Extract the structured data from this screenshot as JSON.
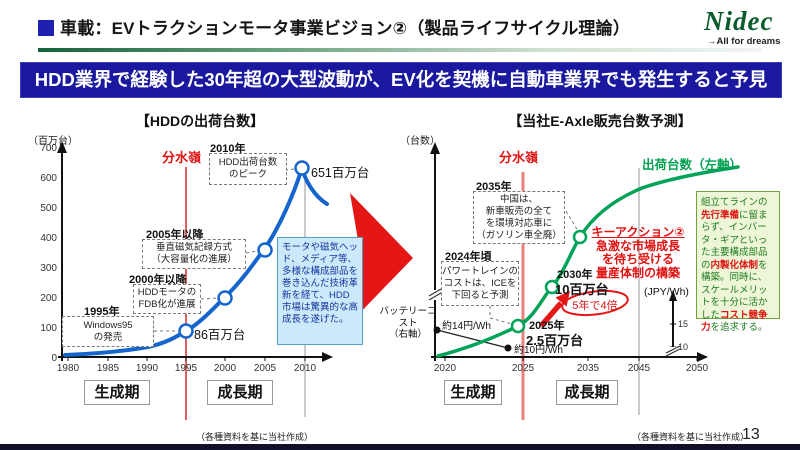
{
  "header": {
    "title": "車載：EVトラクションモータ事業ビジョン②（製品ライフサイクル理論）",
    "logo_text": "Nidec",
    "logo_tagline": "→All for dreams"
  },
  "banner": "HDD業界で経験した30年超の大型波動が、EV化を契機に自動車業界でも発生すると予見",
  "left_chart": {
    "title": "【HDDの出荷台数】",
    "y_unit": "（百万台）",
    "watershed_label": "分水嶺",
    "y_ticks": [
      "700",
      "600",
      "500",
      "400",
      "300",
      "200",
      "100",
      "0"
    ],
    "x_ticks": [
      "1980",
      "1985",
      "1990",
      "1995",
      "2000",
      "2005",
      "2010"
    ],
    "peak_value_label": "651百万台",
    "point_1995_label": "86百万台",
    "annotations": {
      "a2010": {
        "year": "2010年",
        "lines": [
          "HDD出荷台数",
          "のピーク"
        ]
      },
      "a2005": {
        "year": "2005年以降",
        "lines": [
          "垂直磁気記録方式",
          "（大容量化の進展）"
        ]
      },
      "a2000": {
        "year": "2000年以降",
        "lines": [
          "HDDモータの",
          "FDB化が進展"
        ]
      },
      "a1995": {
        "year": "1995年",
        "lines": [
          "Windows95",
          "の発売"
        ]
      }
    },
    "note_box": "モータや磁気ヘッド、メディア等、多様な構成部品を巻き込んだ技術革新を経て、HDD市場は驚異的な高成長を遂げた。",
    "phase_labels": [
      "生成期",
      "成長期"
    ],
    "source": "（各種資料を基に当社作成）"
  },
  "right_chart": {
    "title": "【当社E-Axle販売台数予測】",
    "y_unit": "（台数）",
    "watershed_label": "分水嶺",
    "curve_label": "出荷台数（左軸）",
    "right_axis_label": "(JPY/Wh)",
    "right_axis_ticks": [
      "15",
      "10"
    ],
    "x_ticks": [
      "2020",
      "2025",
      "2035",
      "2045",
      "2050"
    ],
    "battery_label_lines": [
      "バッテリーコスト",
      "（右軸）"
    ],
    "battery_point_labels": [
      "約14円/Wh",
      "約10円/Wh"
    ],
    "milestones": {
      "m2030": {
        "year": "2030年",
        "value": "10百万台"
      },
      "m2025": {
        "year": "2025年",
        "value": "2.5百万台"
      }
    },
    "growth_badge": "5年で4倍",
    "key_action": {
      "title": "キーアクション②",
      "lines": [
        "急激な市場成長",
        "を待ち受ける",
        "量産体制の構築"
      ]
    },
    "annotations": {
      "a2035": {
        "year": "2035年",
        "lines": [
          "中国は、",
          "新車販売の全て",
          "を環境対応車に",
          "（ガソリン車全廃）"
        ]
      },
      "a2024": {
        "year": "2024年頃",
        "lines": [
          "パワートレインの",
          "コストは、ICEを",
          "下回ると予測"
        ]
      }
    },
    "strategy_box_segments": [
      {
        "t": "組立てラインの",
        "red": false
      },
      {
        "t": "先行準備",
        "red": true
      },
      {
        "t": "に留まらず、インバータ・ギアといった主要構成部品の",
        "red": false
      },
      {
        "t": "内製化体制",
        "red": true
      },
      {
        "t": "を構築。同時に、スケールメリットを十分に活かした",
        "red": false
      },
      {
        "t": "コスト競争力",
        "red": true
      },
      {
        "t": "を追求する。",
        "red": false
      }
    ],
    "phase_labels": [
      "生成期",
      "成長期"
    ],
    "source": "（各種資料を基に当社作成）"
  },
  "footer": {
    "page_number": "13"
  },
  "colors": {
    "banner_bg": "#19189e",
    "hdd_curve": "#1565cc",
    "eaxle_curve": "#00a357",
    "accent_red": "#e01212",
    "watershed_line_left": "#d42a2a",
    "watershed_line_right": "#e88080",
    "nidec_green": "#0a5c2c"
  },
  "chart_data": [
    {
      "type": "line",
      "title": "【HDDの出荷台数】",
      "ylabel": "百万台",
      "ylim": [
        0,
        700
      ],
      "x_ticks": [
        1980,
        1985,
        1990,
        1995,
        2000,
        2005,
        2010
      ],
      "series": [
        {
          "name": "HDD出荷台数",
          "labeled_points": [
            [
              1995,
              86
            ],
            [
              2010,
              651
            ]
          ],
          "points_est": [
            [
              1980,
              5
            ],
            [
              1985,
              12
            ],
            [
              1990,
              35
            ],
            [
              1995,
              86
            ],
            [
              2000,
              200
            ],
            [
              2005,
              370
            ],
            [
              2010,
              651
            ],
            [
              2012,
              510
            ]
          ]
        }
      ],
      "annotations": [
        "分水嶺＝1995年",
        "1995年 Windows95の発売（86百万台）",
        "2000年以降 HDDモータのFDB化が進展",
        "2005年以降 垂直磁気記録方式（大容量化の進展）",
        "2010年 HDD出荷台数のピーク（651百万台）"
      ],
      "phases": [
        {
          "label": "生成期",
          "range": [
            1980,
            1995
          ]
        },
        {
          "label": "成長期",
          "range": [
            1995,
            2010
          ]
        }
      ],
      "legend_position": "none",
      "grid": false
    },
    {
      "type": "line",
      "title": "【当社E-Axle販売台数予測】",
      "ylabel": "台数",
      "y2label": "JPY/Wh",
      "y2_ticks": [
        15,
        10
      ],
      "x_ticks": [
        2020,
        2025,
        2035,
        2045,
        2050
      ],
      "series": [
        {
          "name": "出荷台数（左軸）",
          "axis": "left",
          "unit": "百万台",
          "shape": "S字カーブ（2035年以降飽和）",
          "labeled_points": [
            [
              2025,
              2.5
            ],
            [
              2030,
              10
            ]
          ]
        },
        {
          "name": "バッテリーコスト（右軸）",
          "axis": "right",
          "unit": "円/Wh",
          "labeled_points": [
            [
              2020,
              14
            ],
            [
              2024,
              10
            ]
          ]
        }
      ],
      "annotations": [
        "分水嶺＝2025年",
        "2024年頃 パワートレインのコストは、ICEを下回ると予測",
        "2035年 中国は、新車販売の全てを環境対応車に（ガソリン車全廃）",
        "2025年→2030年 5年で4倍",
        "キーアクション② 急激な市場成長を待ち受ける量産体制の構築"
      ],
      "phases": [
        {
          "label": "生成期",
          "range": [
            2020,
            2025
          ]
        },
        {
          "label": "成長期",
          "range": [
            2025,
            2045
          ]
        }
      ],
      "legend_position": "inline",
      "grid": false
    }
  ]
}
